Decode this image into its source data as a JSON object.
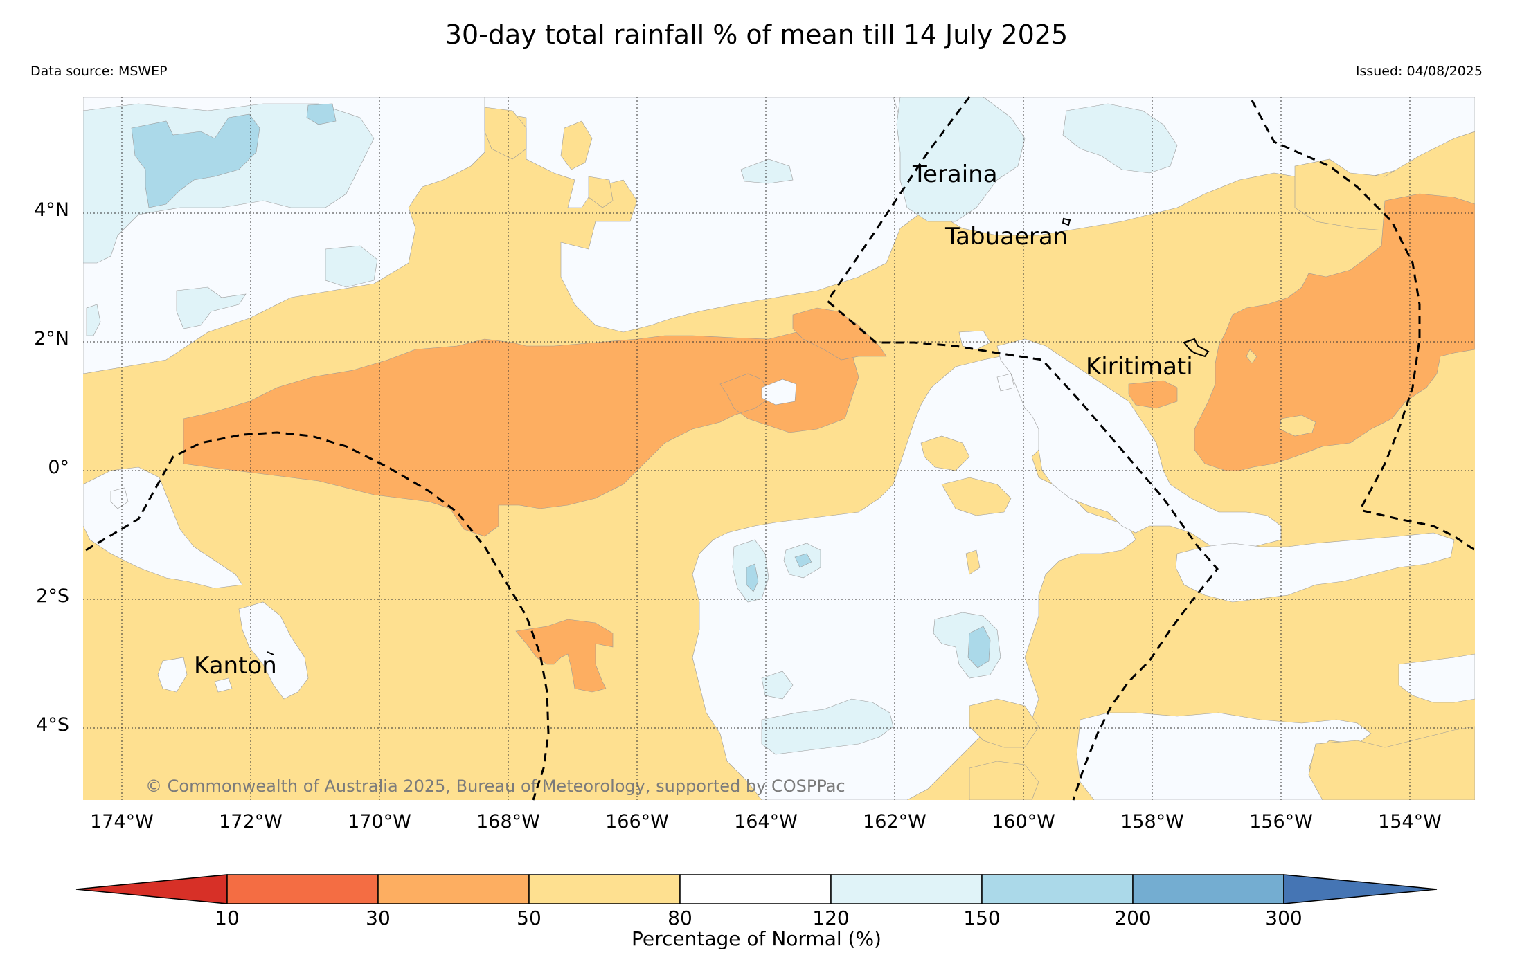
{
  "header": {
    "title": "30-day total rainfall % of mean till 14 July 2025",
    "data_source": "Data source: MSWEP",
    "issued": "Issued: 04/08/2025"
  },
  "map": {
    "lat_labels": [
      "4°N",
      "2°N",
      "0°",
      "2°S",
      "4°S"
    ],
    "lon_labels": [
      "174°W",
      "172°W",
      "170°W",
      "168°W",
      "166°W",
      "164°W",
      "162°W",
      "160°W",
      "158°W",
      "156°W",
      "154°W"
    ],
    "places": {
      "teraina": "Teraina",
      "tabuaeran": "Tabuaeran",
      "kiritimati": "Kiritimati",
      "kanton": "Kanton"
    },
    "copyright": "© Commonwealth of Australia 2025, Bureau of Meteorology, supported by COSPPac",
    "colors": {
      "10-30": "#f46d43",
      "30-50": "#fdae61",
      "50-80": "#fee090",
      "80-120": "#f8fbff",
      "120-150": "#e0f3f8",
      "150-200": "#abd9e9",
      "200-300": "#74add1",
      "below-10": "#d73027",
      "above-300": "#4575b4"
    }
  },
  "colorbar": {
    "ticks": [
      "10",
      "30",
      "50",
      "80",
      "120",
      "150",
      "200",
      "300"
    ],
    "label": "Percentage of Normal (%)"
  }
}
